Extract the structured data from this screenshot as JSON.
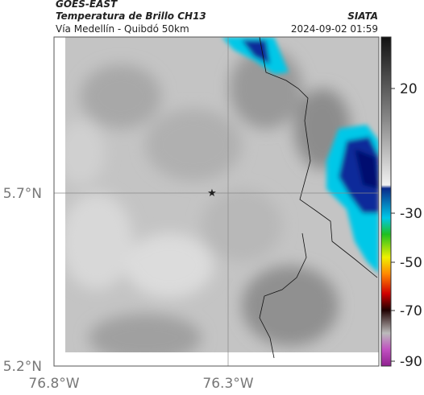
{
  "header": {
    "source": "GOES-EAST",
    "product": "Temperatura de Brillo CH13",
    "route": "Vía Medellín - Quibdó 50km",
    "brand": "SIATA",
    "timestamp": "2024-09-02 01:59"
  },
  "axes": {
    "y_labels": [
      "5.7°N",
      "5.2°N"
    ],
    "x_labels": [
      "76.8°W",
      "76.3°W"
    ]
  },
  "colorbar": {
    "ticks": [
      20,
      -30,
      -50,
      -70,
      -90
    ]
  }
}
